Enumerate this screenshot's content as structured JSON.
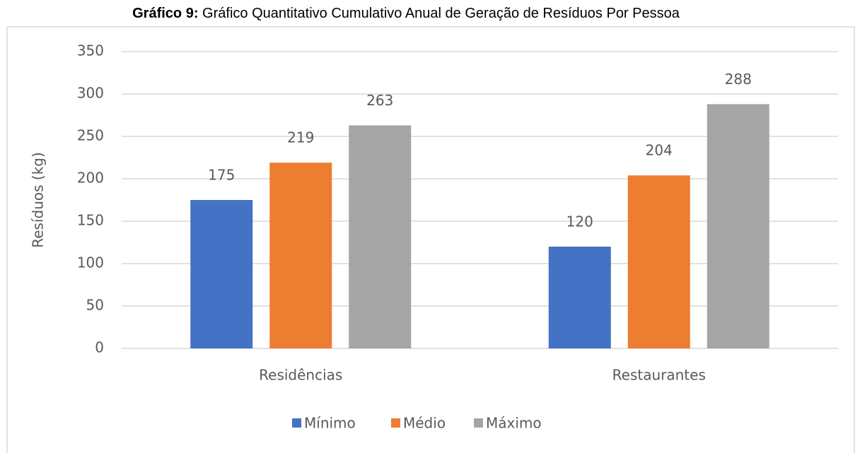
{
  "chart_data": {
    "type": "bar",
    "title_prefix": "Gráfico 9:",
    "title": "Gráfico Quantitativo Cumulativo Anual de Geração de Resíduos Por Pessoa",
    "y_label": "Resíduos (kg)",
    "categories": [
      "Residências",
      "Restaurantes"
    ],
    "series": [
      {
        "name": "Mínimo",
        "color": "#4472c4",
        "values": [
          175,
          120
        ]
      },
      {
        "name": "Médio",
        "color": "#ed7d31",
        "values": [
          219,
          204
        ]
      },
      {
        "name": "Máximo",
        "color": "#a5a5a5",
        "values": [
          263,
          288
        ]
      }
    ],
    "ylim": [
      0,
      350
    ],
    "yticks": [
      0,
      50,
      100,
      150,
      200,
      250,
      300,
      350
    ],
    "grid": true,
    "legend": "bottom"
  }
}
